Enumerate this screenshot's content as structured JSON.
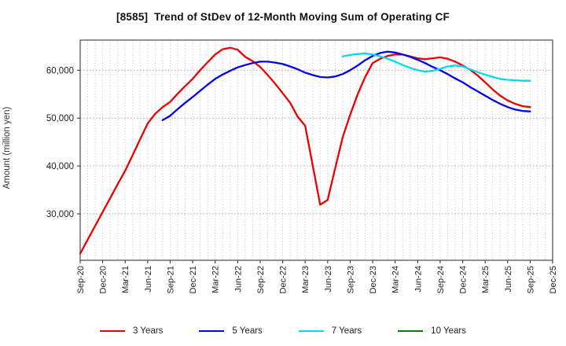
{
  "window": {
    "title": "[8585]  Trend of StDev of 12-Month Moving Sum of Operating CF"
  },
  "chart_data": {
    "type": "line",
    "title": "[8585]  Trend of StDev of 12-Month Moving Sum of Operating CF",
    "ylabel": "Amount (million yen)",
    "yticks": [
      30000,
      40000,
      50000,
      60000
    ],
    "ytick_labels": [
      "30,000",
      "40,000",
      "50,000",
      "60,000"
    ],
    "ylim": [
      20300,
      66300
    ],
    "x_tick_labels": [
      "Sep-20",
      "Dec-20",
      "Mar-21",
      "Jun-21",
      "Sep-21",
      "Dec-21",
      "Mar-22",
      "Jun-22",
      "Sep-22",
      "Dec-22",
      "Mar-23",
      "Jun-23",
      "Sep-23",
      "Dec-23",
      "Mar-24",
      "Jun-24",
      "Sep-24",
      "Dec-24",
      "Mar-25",
      "Jun-25",
      "Sep-25",
      "Dec-25"
    ],
    "x_tick_step_months": 3,
    "months_total": 63,
    "grid": "dotted gridlines: vertical every month, horizontal at each y tick",
    "legend_position": "bottom",
    "colors": {
      "grid_vertical": "#b9b9b9",
      "grid_horizontal": "#999999",
      "axis_border": "#3a3a3a",
      "tick_text": "#222222"
    },
    "series": [
      {
        "name": "3 Years",
        "color": "#ee0000",
        "start_month": 0,
        "start_label": "Sep-20",
        "values": [
          21700,
          24600,
          27500,
          30400,
          33300,
          36200,
          39000,
          42300,
          45600,
          48900,
          50900,
          52300,
          53400,
          55100,
          56700,
          58200,
          60000,
          61700,
          63300,
          64400,
          64700,
          64300,
          62800,
          61900,
          60700,
          59000,
          57200,
          55200,
          53200,
          50300,
          48400,
          40200,
          31900,
          32900,
          39500,
          46000,
          50700,
          55000,
          58600,
          61500,
          62400,
          63000,
          63300,
          63300,
          62900,
          62500,
          62300,
          62500,
          62700,
          62400,
          61800,
          61000,
          60100,
          58900,
          57500,
          56000,
          54700,
          53700,
          53000,
          52500,
          52300
        ]
      },
      {
        "name": "5 Years",
        "color": "#0000ee",
        "start_month": 11,
        "start_label": "Aug-21",
        "values": [
          49600,
          50500,
          51900,
          53200,
          54400,
          55700,
          57000,
          58200,
          59100,
          59900,
          60600,
          61100,
          61500,
          61800,
          61800,
          61600,
          61300,
          60800,
          60200,
          59500,
          59000,
          58600,
          58500,
          58700,
          59200,
          60000,
          61000,
          62100,
          63000,
          63600,
          63900,
          63700,
          63300,
          62800,
          62200,
          61500,
          60700,
          60000,
          59200,
          58300,
          57500,
          56500,
          55600,
          54700,
          53800,
          53000,
          52300,
          51800,
          51500,
          51400
        ]
      },
      {
        "name": "7 Years",
        "color": "#00dcee",
        "start_month": 35,
        "start_label": "Aug-23",
        "values": [
          62900,
          63200,
          63400,
          63500,
          63300,
          62900,
          62400,
          61800,
          61100,
          60500,
          60000,
          59700,
          59900,
          60300,
          60800,
          61000,
          60800,
          60200,
          59600,
          59100,
          58600,
          58200,
          58000,
          57900,
          57800,
          57800
        ]
      },
      {
        "name": "10 Years",
        "color": "#008000",
        "start_month": null,
        "values": []
      }
    ]
  }
}
